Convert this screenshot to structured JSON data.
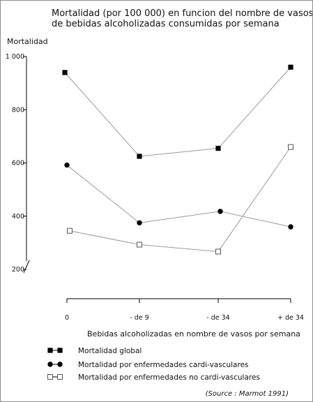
{
  "chart_data": {
    "type": "line",
    "title_lines": [
      "Mortalidad (por 100 000) en funcion del nombre de vasos",
      "de bebidas alcoholizadas consumidas por semana"
    ],
    "ylabel": "Mortalidad",
    "xlabel": "Bebidas alcoholizadas en nombre de vasos por semana",
    "categories": [
      "0",
      "- de 9",
      "- de 34",
      "+ de 34"
    ],
    "y_ticks": [
      {
        "value": 1000,
        "label": "1 000"
      },
      {
        "value": 800,
        "label": "800"
      },
      {
        "value": 600,
        "label": "600"
      },
      {
        "value": 400,
        "label": "400"
      },
      {
        "value": 200,
        "label": "200"
      }
    ],
    "ylim": [
      200,
      1000
    ],
    "axis_break": true,
    "grid": false,
    "legend_position": "bottom-left",
    "series": [
      {
        "name": "Mortalidad global",
        "marker": "filled-square",
        "values": [
          940,
          625,
          655,
          960
        ]
      },
      {
        "name": "Mortalidad por enfermedades cardi-vasculares",
        "marker": "filled-circle",
        "values": [
          592,
          375,
          418,
          360
        ]
      },
      {
        "name": "Mortalidad por enfermedades no cardi-vasculares",
        "marker": "open-square",
        "values": [
          345,
          293,
          267,
          660
        ]
      }
    ],
    "source": "(Source : Marmot 1991)",
    "colors": {
      "line": "#9a9a9a",
      "marker": "#000000",
      "axis": "#000000"
    }
  }
}
